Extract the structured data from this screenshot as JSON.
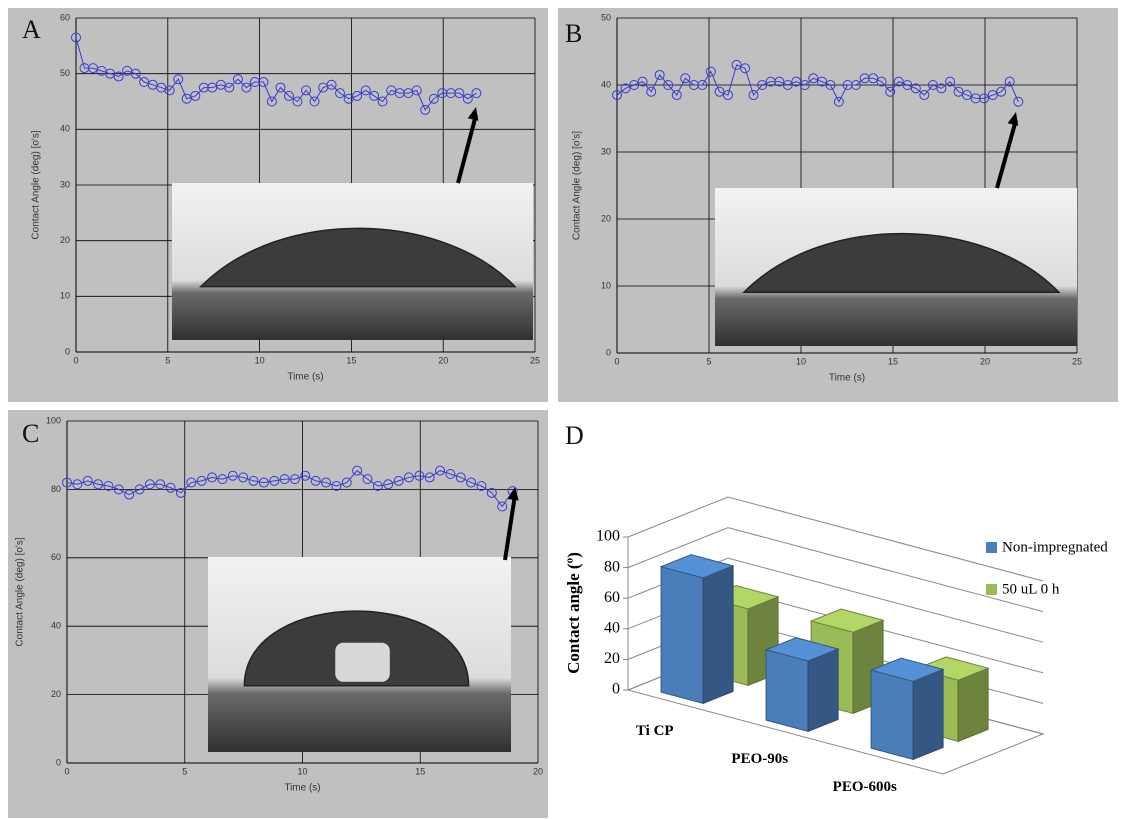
{
  "chart_data": [
    {
      "type": "line",
      "panel_label": "A",
      "x_label": "Time (s)",
      "y_label": "Contact Angle (deg) [o's]",
      "color": "#3a3ad0",
      "xlim": [
        0,
        25
      ],
      "xticks": [
        0,
        5,
        10,
        15,
        20,
        25
      ],
      "ylim": [
        0,
        60
      ],
      "yticks": [
        0,
        10,
        20,
        30,
        40,
        50,
        60
      ],
      "grid": true,
      "x": [
        0,
        0.46,
        0.93,
        1.39,
        1.86,
        2.32,
        2.78,
        3.25,
        3.71,
        4.18,
        4.64,
        5.1,
        5.57,
        6.03,
        6.5,
        6.96,
        7.42,
        7.89,
        8.35,
        8.82,
        9.28,
        9.74,
        10.21,
        10.67,
        11.14,
        11.6,
        12.06,
        12.53,
        12.99,
        13.46,
        13.92,
        14.38,
        14.85,
        15.31,
        15.78,
        16.24,
        16.7,
        17.17,
        17.63,
        18.1,
        18.56,
        19.02,
        19.49,
        19.95,
        20.42,
        20.88,
        21.34,
        21.81
      ],
      "values": [
        56.5,
        51,
        51,
        50.5,
        50,
        49.5,
        50.5,
        50,
        48.5,
        48,
        47.5,
        47,
        49,
        45.5,
        46,
        47.5,
        47.5,
        48,
        47.5,
        49,
        47.5,
        48.5,
        48.5,
        45,
        47.5,
        46,
        45,
        47,
        45,
        47.5,
        48,
        46.5,
        45.5,
        46,
        47,
        46,
        45,
        47,
        46.5,
        46.5,
        47,
        43.5,
        45.5,
        46.5,
        46.5,
        46.5,
        45.5,
        46.5
      ]
    },
    {
      "type": "line",
      "panel_label": "B",
      "x_label": "Time (s)",
      "y_label": "Contact Angle (deg) [o's]",
      "color": "#3a3ad0",
      "xlim": [
        0,
        25
      ],
      "xticks": [
        0,
        5,
        10,
        15,
        20,
        25
      ],
      "ylim": [
        0,
        50
      ],
      "yticks": [
        0,
        10,
        20,
        30,
        40,
        50
      ],
      "grid": true,
      "x": [
        0,
        0.46,
        0.93,
        1.39,
        1.86,
        2.32,
        2.78,
        3.25,
        3.71,
        4.18,
        4.64,
        5.1,
        5.57,
        6.03,
        6.5,
        6.96,
        7.42,
        7.89,
        8.35,
        8.82,
        9.28,
        9.74,
        10.21,
        10.67,
        11.14,
        11.6,
        12.06,
        12.53,
        12.99,
        13.46,
        13.92,
        14.38,
        14.85,
        15.31,
        15.78,
        16.24,
        16.7,
        17.17,
        17.63,
        18.1,
        18.56,
        19.02,
        19.49,
        19.95,
        20.42,
        20.88,
        21.34,
        21.81
      ],
      "values": [
        38.5,
        39.5,
        40,
        40.5,
        39,
        41.5,
        40,
        38.5,
        41,
        40,
        40,
        42,
        39,
        38.5,
        43,
        42.5,
        38.5,
        40,
        40.5,
        40.5,
        40,
        40.5,
        40,
        41,
        40.5,
        40,
        37.5,
        40,
        40,
        41,
        41,
        40.5,
        39,
        40.5,
        40,
        39.5,
        38.5,
        40,
        39.5,
        40.5,
        39,
        38.5,
        38,
        38,
        38.5,
        39,
        40.5,
        37.5
      ]
    },
    {
      "type": "line",
      "panel_label": "C",
      "x_label": "Time (s)",
      "y_label": "Contact Angle (deg) [o's]",
      "color": "#3a3ad0",
      "xlim": [
        0,
        20
      ],
      "xticks": [
        0,
        5,
        10,
        15,
        20
      ],
      "ylim": [
        0,
        100
      ],
      "yticks": [
        0,
        20,
        40,
        60,
        80,
        100
      ],
      "grid": true,
      "x": [
        0,
        0.44,
        0.88,
        1.32,
        1.76,
        2.2,
        2.64,
        3.08,
        3.52,
        3.96,
        4.4,
        4.84,
        5.28,
        5.72,
        6.16,
        6.6,
        7.04,
        7.48,
        7.92,
        8.36,
        8.8,
        9.24,
        9.68,
        10.12,
        10.56,
        11,
        11.44,
        11.88,
        12.32,
        12.76,
        13.2,
        13.64,
        14.08,
        14.52,
        14.96,
        15.4,
        15.84,
        16.28,
        16.72,
        17.16,
        17.6,
        18.04,
        18.48,
        18.92
      ],
      "values": [
        82,
        81.5,
        82.5,
        81.5,
        81,
        80,
        78.5,
        80,
        81.5,
        81.5,
        80.5,
        79,
        82,
        82.5,
        83.5,
        83,
        84,
        83.5,
        82.5,
        82,
        82.5,
        83,
        83,
        84,
        82.5,
        82,
        81,
        82,
        85.5,
        83,
        81,
        81.5,
        82.5,
        83.5,
        84,
        83.5,
        85.5,
        84.5,
        83.5,
        82,
        81,
        79,
        75,
        79.5
      ]
    },
    {
      "type": "bar3d",
      "panel_label": "D",
      "y_label": "Contact angle (º)",
      "legend": "right",
      "categories": [
        "Ti CP",
        "PEO-90s",
        "PEO-600s"
      ],
      "ylim": [
        0,
        100
      ],
      "yticks": [
        0,
        20,
        40,
        60,
        80,
        100
      ],
      "grid": true,
      "series": [
        {
          "name": "Non-impregnated",
          "color": "#4a7ebb",
          "values": [
            82,
            46,
            51
          ]
        },
        {
          "name": "50 uL 0 h",
          "color": "#9bbb59",
          "values": [
            50,
            53,
            40
          ]
        }
      ]
    }
  ]
}
